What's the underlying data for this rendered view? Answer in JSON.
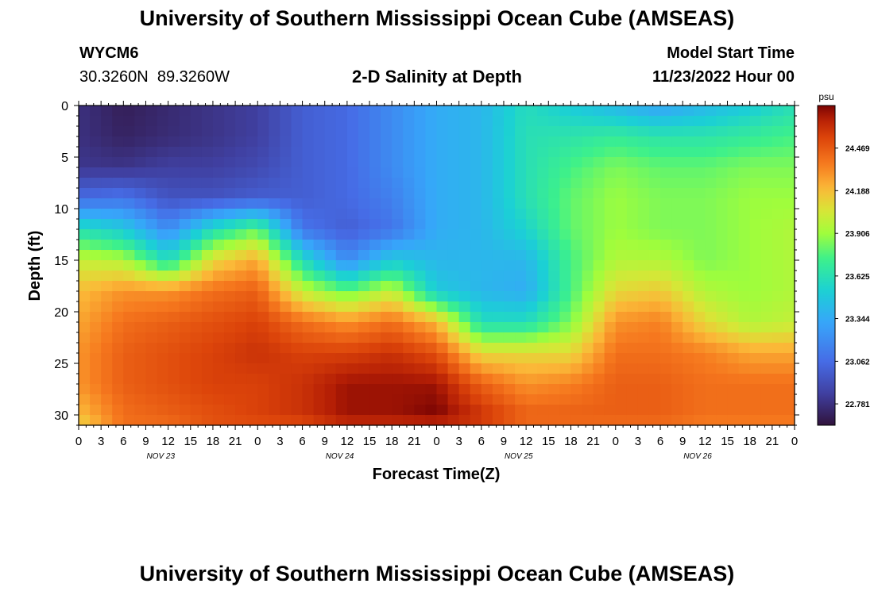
{
  "page": {
    "title": "University of Southern Mississippi Ocean Cube (AMSEAS)",
    "footer_title": "University of Southern Mississippi Ocean Cube (AMSEAS)",
    "station_id": "WYCM6",
    "station_coords": "30.3260N  89.3260W",
    "plot_title": "2-D Salinity at Depth",
    "model_start_label": "Model Start Time",
    "model_start_value": "11/23/2022 Hour 00"
  },
  "chart_data": {
    "type": "heatmap",
    "title": "2-D Salinity at Depth",
    "xlabel": "Forecast Time(Z)",
    "ylabel": "Depth (ft)",
    "x_tick_labels": [
      "0",
      "3",
      "6",
      "9",
      "12",
      "15",
      "18",
      "21",
      "0",
      "3",
      "6",
      "9",
      "12",
      "15",
      "18",
      "21",
      "0",
      "3",
      "6",
      "9",
      "12",
      "15",
      "18",
      "21",
      "0",
      "3",
      "6",
      "9",
      "12",
      "15",
      "18",
      "21",
      "0"
    ],
    "x_range_hours": [
      0,
      96
    ],
    "date_labels": [
      {
        "label": "NOV 23",
        "hour": 11
      },
      {
        "label": "NOV 24",
        "hour": 35
      },
      {
        "label": "NOV 25",
        "hour": 59
      },
      {
        "label": "NOV 26",
        "hour": 83
      }
    ],
    "y_ticks": [
      0,
      5,
      10,
      15,
      20,
      25,
      30
    ],
    "y_range_ft": [
      0,
      31
    ],
    "colorbar": {
      "unit": "psu",
      "ticks": [
        "24.469",
        "24.188",
        "23.906",
        "23.625",
        "23.344",
        "23.062",
        "22.781"
      ],
      "tick_values": [
        24.469,
        24.188,
        23.906,
        23.625,
        23.344,
        23.062,
        22.781
      ],
      "range": [
        22.64,
        24.75
      ]
    },
    "profile_hours": [
      0,
      6,
      12,
      18,
      24,
      30,
      36,
      42,
      48,
      54,
      60,
      66,
      72,
      78,
      84,
      90,
      96
    ],
    "profile_depths_ft": [
      0,
      3,
      6,
      9,
      12,
      15,
      18,
      21,
      24,
      27,
      30,
      31
    ],
    "salinity_psu": [
      [
        22.78,
        22.78,
        22.81,
        23.06,
        23.62,
        24.0,
        24.19,
        24.25,
        24.3,
        24.3,
        24.19,
        24.1
      ],
      [
        22.7,
        22.72,
        22.8,
        23.1,
        23.5,
        23.95,
        24.3,
        24.4,
        24.45,
        24.45,
        24.4,
        24.4
      ],
      [
        22.75,
        22.76,
        22.85,
        22.95,
        23.2,
        23.6,
        24.3,
        24.45,
        24.5,
        24.5,
        24.45,
        24.4
      ],
      [
        22.8,
        22.8,
        22.85,
        22.95,
        23.6,
        24.1,
        24.4,
        24.5,
        24.55,
        24.55,
        24.5,
        24.5
      ],
      [
        22.85,
        22.85,
        22.9,
        23.0,
        23.8,
        24.25,
        24.45,
        24.55,
        24.6,
        24.55,
        24.55,
        24.5
      ],
      [
        23.0,
        23.0,
        23.0,
        23.0,
        23.1,
        23.6,
        24.0,
        24.4,
        24.55,
        24.6,
        24.6,
        24.5
      ],
      [
        23.05,
        23.05,
        23.05,
        23.05,
        23.0,
        23.2,
        23.8,
        24.3,
        24.55,
        24.7,
        24.7,
        24.6
      ],
      [
        23.2,
        23.2,
        23.2,
        23.15,
        23.1,
        23.5,
        24.0,
        24.4,
        24.6,
        24.7,
        24.7,
        24.6
      ],
      [
        23.35,
        23.35,
        23.35,
        23.35,
        23.35,
        23.4,
        23.5,
        24.2,
        24.5,
        24.7,
        24.75,
        24.6
      ],
      [
        23.4,
        23.4,
        23.4,
        23.4,
        23.4,
        23.4,
        23.4,
        23.6,
        24.1,
        24.45,
        24.6,
        24.55
      ],
      [
        23.6,
        23.62,
        23.62,
        23.62,
        23.55,
        23.4,
        23.35,
        23.6,
        24.1,
        24.3,
        24.45,
        24.4
      ],
      [
        23.5,
        23.65,
        23.75,
        23.8,
        23.8,
        23.75,
        23.75,
        23.85,
        24.1,
        24.35,
        24.45,
        24.4
      ],
      [
        23.4,
        23.7,
        23.85,
        23.9,
        23.9,
        23.95,
        24.1,
        24.3,
        24.4,
        24.45,
        24.45,
        24.4
      ],
      [
        23.3,
        23.65,
        23.8,
        23.85,
        23.85,
        23.95,
        24.15,
        24.35,
        24.4,
        24.45,
        24.45,
        24.4
      ],
      [
        23.4,
        23.65,
        23.8,
        23.85,
        23.85,
        23.85,
        23.95,
        24.1,
        24.35,
        24.4,
        24.4,
        24.35
      ],
      [
        23.5,
        23.7,
        23.85,
        23.9,
        23.9,
        23.9,
        23.9,
        23.95,
        24.25,
        24.4,
        24.4,
        24.35
      ],
      [
        23.62,
        23.75,
        23.85,
        23.9,
        23.95,
        23.95,
        23.95,
        24.0,
        24.25,
        24.4,
        24.4,
        24.35
      ]
    ]
  }
}
